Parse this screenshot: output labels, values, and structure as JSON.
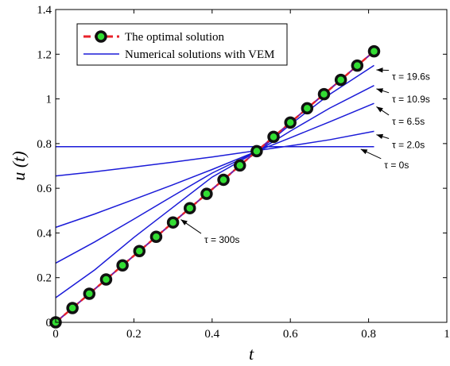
{
  "chart_data": {
    "type": "line",
    "xlabel": "t",
    "ylabel": "u (t)",
    "xlim": [
      0,
      1
    ],
    "ylim": [
      0,
      1.4
    ],
    "x_ticks": [
      0,
      0.2,
      0.4,
      0.6,
      0.8,
      1
    ],
    "x_tick_labels": [
      "0",
      "0.2",
      "0.4",
      "0.6",
      "0.8",
      "1"
    ],
    "y_ticks": [
      0,
      0.2,
      0.4,
      0.6,
      0.8,
      1.0,
      1.2,
      1.4
    ],
    "y_tick_labels": [
      "0",
      "0.2",
      "0.4",
      "0.6",
      "0.8",
      "1",
      "1.2",
      "1.4"
    ],
    "grid": false,
    "legend": {
      "position": "top-left",
      "entries": [
        "The optimal solution",
        "Numerical solutions with VEM"
      ]
    },
    "optimal_solution": {
      "name": "The optimal solution",
      "color_line": "#e8222a",
      "color_marker_face": "#33dd33",
      "color_marker_edge": "#111111",
      "x": [
        0,
        0.043,
        0.086,
        0.129,
        0.171,
        0.214,
        0.257,
        0.3,
        0.343,
        0.386,
        0.429,
        0.471,
        0.514,
        0.557,
        0.6,
        0.643,
        0.686,
        0.729,
        0.771,
        0.814
      ],
      "y": [
        0,
        0.064,
        0.128,
        0.192,
        0.255,
        0.319,
        0.383,
        0.447,
        0.511,
        0.575,
        0.638,
        0.702,
        0.766,
        0.83,
        0.894,
        0.958,
        1.021,
        1.085,
        1.149,
        1.213
      ]
    },
    "vem_solutions": {
      "name": "Numerical solutions with VEM",
      "color": "#1b1bd8",
      "series": [
        {
          "tau": "0s",
          "x": [
            0,
            0.814
          ],
          "y": [
            0.786,
            0.786
          ]
        },
        {
          "tau": "2.0s",
          "x": [
            0,
            0.1,
            0.2,
            0.3,
            0.4,
            0.52,
            0.6,
            0.7,
            0.814
          ],
          "y": [
            0.655,
            0.674,
            0.695,
            0.717,
            0.74,
            0.77,
            0.79,
            0.817,
            0.855
          ]
        },
        {
          "tau": "6.5s",
          "x": [
            0,
            0.1,
            0.2,
            0.3,
            0.4,
            0.52,
            0.6,
            0.7,
            0.814
          ],
          "y": [
            0.425,
            0.485,
            0.55,
            0.616,
            0.684,
            0.77,
            0.826,
            0.897,
            0.98
          ]
        },
        {
          "tau": "10.9s",
          "x": [
            0,
            0.1,
            0.2,
            0.3,
            0.4,
            0.52,
            0.6,
            0.7,
            0.814
          ],
          "y": [
            0.265,
            0.36,
            0.462,
            0.566,
            0.668,
            0.77,
            0.856,
            0.958,
            1.06
          ]
        },
        {
          "tau": "19.6s",
          "x": [
            0,
            0.1,
            0.2,
            0.3,
            0.4,
            0.52,
            0.6,
            0.7,
            0.814
          ],
          "y": [
            0.11,
            0.235,
            0.38,
            0.515,
            0.65,
            0.77,
            0.885,
            1.02,
            1.15
          ]
        },
        {
          "tau": "300s",
          "x": [
            0,
            0.814
          ],
          "y": [
            0,
            1.213
          ]
        }
      ]
    },
    "annotations": [
      {
        "text": "τ = 19.6s",
        "point": [
          0.82,
          1.13
        ],
        "label_pos": [
          0.86,
          1.085
        ]
      },
      {
        "text": "τ = 10.9s",
        "point": [
          0.82,
          1.045
        ],
        "label_pos": [
          0.86,
          0.985
        ]
      },
      {
        "text": "τ = 6.5s",
        "point": [
          0.82,
          0.965
        ],
        "label_pos": [
          0.86,
          0.885
        ]
      },
      {
        "text": "τ = 2.0s",
        "point": [
          0.82,
          0.84
        ],
        "label_pos": [
          0.86,
          0.78
        ]
      },
      {
        "text": "τ = 0s",
        "point": [
          0.78,
          0.775
        ],
        "label_pos": [
          0.84,
          0.69
        ]
      },
      {
        "text": "τ = 300s",
        "point": [
          0.32,
          0.46
        ],
        "label_pos": [
          0.38,
          0.355
        ]
      }
    ]
  }
}
